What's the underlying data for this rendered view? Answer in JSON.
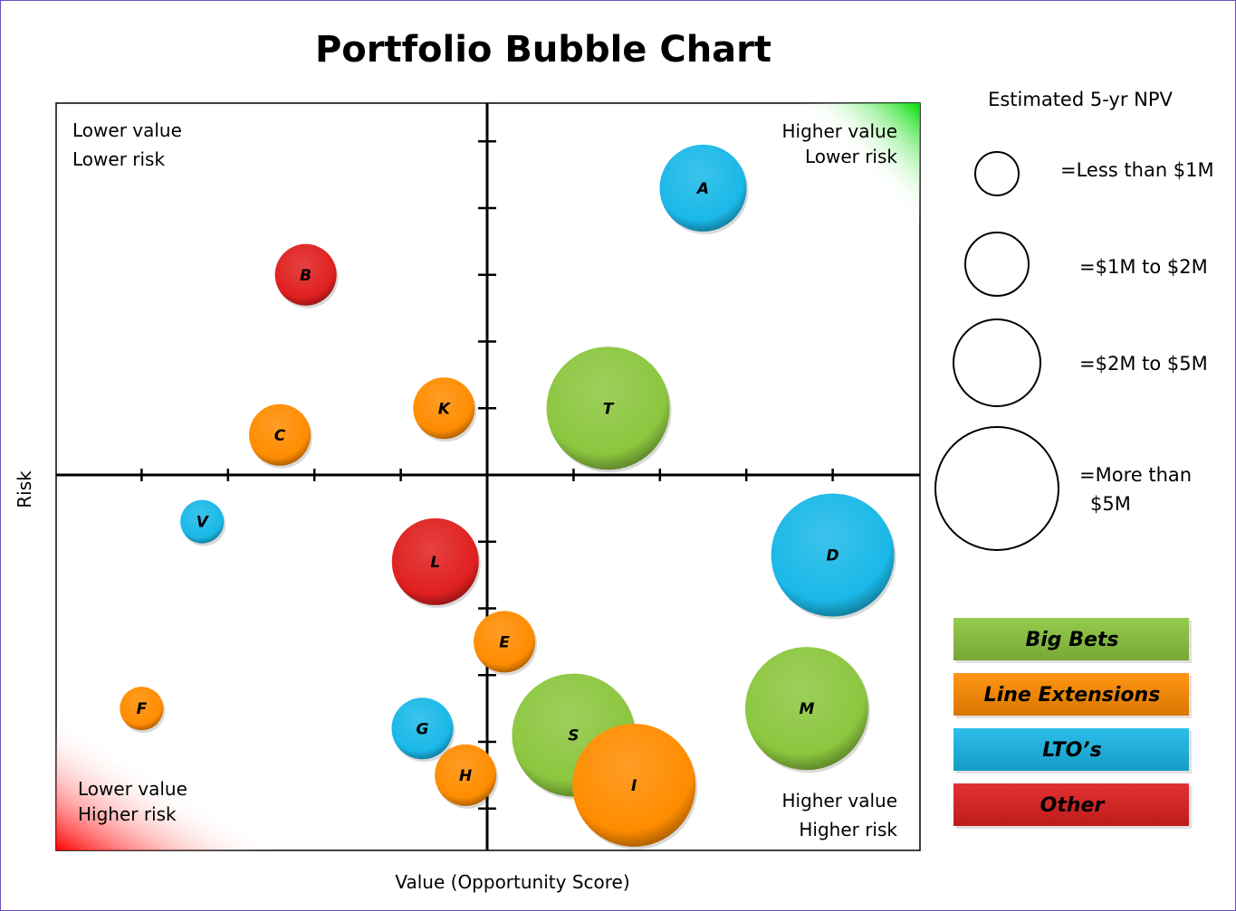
{
  "chart_data": {
    "type": "bubble",
    "title": "Portfolio Bubble Chart",
    "xlabel": "Value (Opportunity Score)",
    "ylabel": "Risk",
    "xlim": [
      -5,
      5
    ],
    "ylim": [
      -5.6,
      5.6
    ],
    "x_ticks": [
      -4,
      -3,
      -2,
      -1,
      0,
      1,
      2,
      3,
      4
    ],
    "y_ticks": [
      -5,
      -4,
      -3,
      -2,
      -1,
      0,
      1,
      2,
      3,
      4,
      5
    ],
    "tick_labels_shown": false,
    "grid": false,
    "quadrant_labels": {
      "top_left": [
        "Lower value",
        "Lower risk"
      ],
      "top_right": [
        "Higher value",
        "Lower risk"
      ],
      "bottom_left": [
        "Lower value",
        "Higher risk"
      ],
      "bottom_right": [
        "Higher value",
        "Higher risk"
      ]
    },
    "size_legend": {
      "title": "Estimated 5-yr NPV",
      "entries": [
        "=Less than $1M",
        "=$1M to $2M",
        "=$2M to $5M",
        "=More than $5M"
      ]
    },
    "categories": [
      {
        "name": "Big Bets",
        "color": "#8cc63f"
      },
      {
        "name": "Line Extensions",
        "color": "#ff8c00"
      },
      {
        "name": "LTO’s",
        "color": "#1ab8e8"
      },
      {
        "name": "Other",
        "color": "#e02020"
      }
    ],
    "legend_position": "right",
    "points": [
      {
        "label": "A",
        "x": 2.5,
        "y": 4.3,
        "size": 2,
        "category": 2
      },
      {
        "label": "B",
        "x": -2.1,
        "y": 3.0,
        "size": 1,
        "category": 3
      },
      {
        "label": "C",
        "x": -2.4,
        "y": 0.6,
        "size": 1,
        "category": 1
      },
      {
        "label": "K",
        "x": -0.5,
        "y": 1.0,
        "size": 1,
        "category": 1
      },
      {
        "label": "T",
        "x": 1.4,
        "y": 1.0,
        "size": 3,
        "category": 0
      },
      {
        "label": "V",
        "x": -3.3,
        "y": -0.7,
        "size": 0,
        "category": 2
      },
      {
        "label": "L",
        "x": -0.6,
        "y": -1.3,
        "size": 2,
        "category": 3
      },
      {
        "label": "D",
        "x": 4.0,
        "y": -1.2,
        "size": 3,
        "category": 2
      },
      {
        "label": "E",
        "x": 0.2,
        "y": -2.5,
        "size": 1,
        "category": 1
      },
      {
        "label": "F",
        "x": -4.0,
        "y": -3.5,
        "size": 0,
        "category": 1
      },
      {
        "label": "G",
        "x": -0.75,
        "y": -3.8,
        "size": 1,
        "category": 2
      },
      {
        "label": "M",
        "x": 3.7,
        "y": -3.5,
        "size": 3,
        "category": 0
      },
      {
        "label": "S",
        "x": 1.0,
        "y": -3.9,
        "size": 3,
        "category": 0
      },
      {
        "label": "H",
        "x": -0.25,
        "y": -4.5,
        "size": 1,
        "category": 1
      },
      {
        "label": "I",
        "x": 1.7,
        "y": -4.65,
        "size": 3,
        "category": 1
      }
    ]
  }
}
